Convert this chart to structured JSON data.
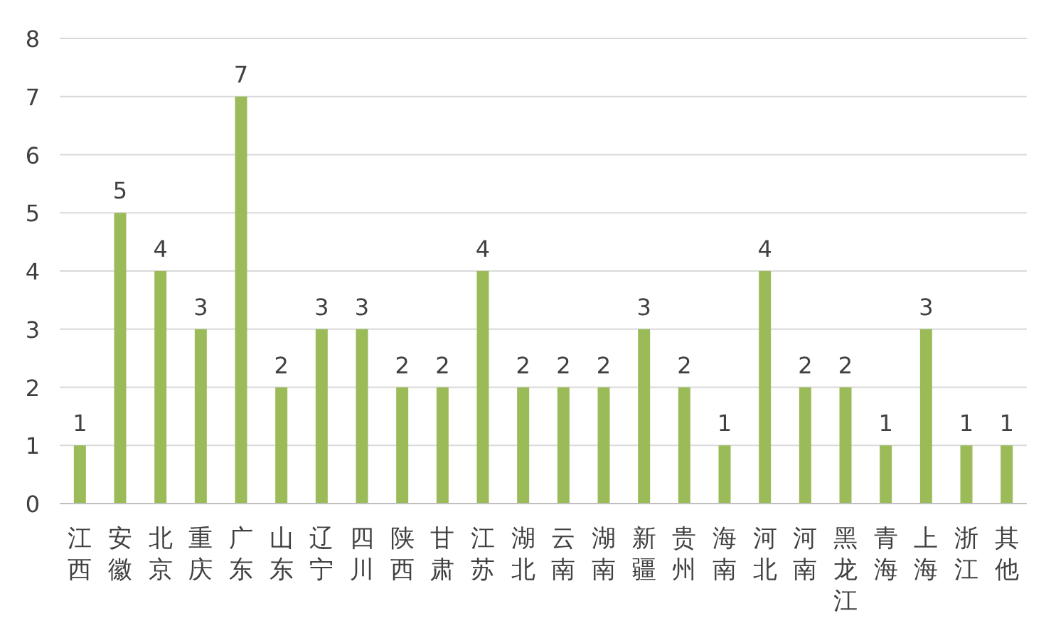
{
  "chart_data": {
    "type": "bar",
    "categories": [
      "江西",
      "安徽",
      "北京",
      "重庆",
      "广东",
      "山东",
      "辽宁",
      "四川",
      "陕西",
      "甘肃",
      "江苏",
      "湖北",
      "云南",
      "湖南",
      "新疆",
      "贵州",
      "海南",
      "河北",
      "河南",
      "黑龙江",
      "青海",
      "上海",
      "浙江",
      "其他"
    ],
    "values": [
      1,
      5,
      4,
      3,
      7,
      2,
      3,
      3,
      2,
      2,
      4,
      2,
      2,
      2,
      3,
      2,
      1,
      4,
      2,
      2,
      1,
      3,
      1,
      1
    ],
    "color": "#9bbb59",
    "ylim": [
      0,
      8
    ],
    "yticks": [
      0,
      1,
      2,
      3,
      4,
      5,
      6,
      7,
      8
    ],
    "grid": "y",
    "data_labels": true
  }
}
